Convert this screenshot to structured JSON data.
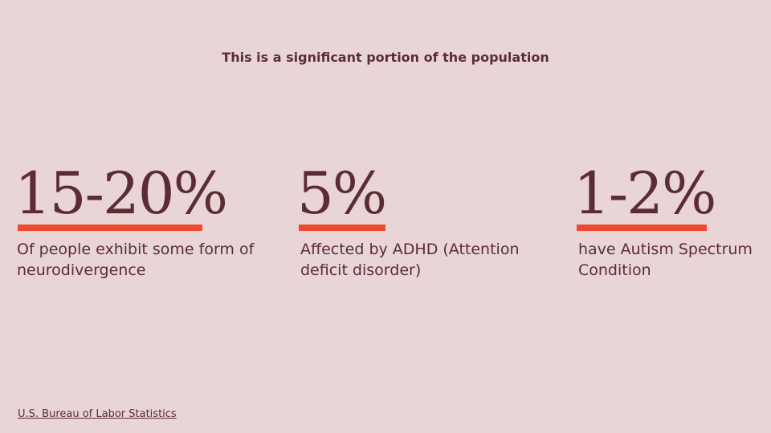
{
  "slide": {
    "subtitle": "This is a significant portion of the population",
    "stats": [
      {
        "value": "15-20%",
        "description": "Of people exhibit some form of neurodivergence"
      },
      {
        "value": "5%",
        "description": "Affected by ADHD (Attention deficit disorder)"
      },
      {
        "value": "1-2%",
        "description": "have Autism Spectrum Condition"
      }
    ],
    "source": "U.S. Bureau of Labor Statistics"
  },
  "colors": {
    "background": "#e9d5d6",
    "text": "#5c2c35",
    "accent": "#ef4a31"
  }
}
